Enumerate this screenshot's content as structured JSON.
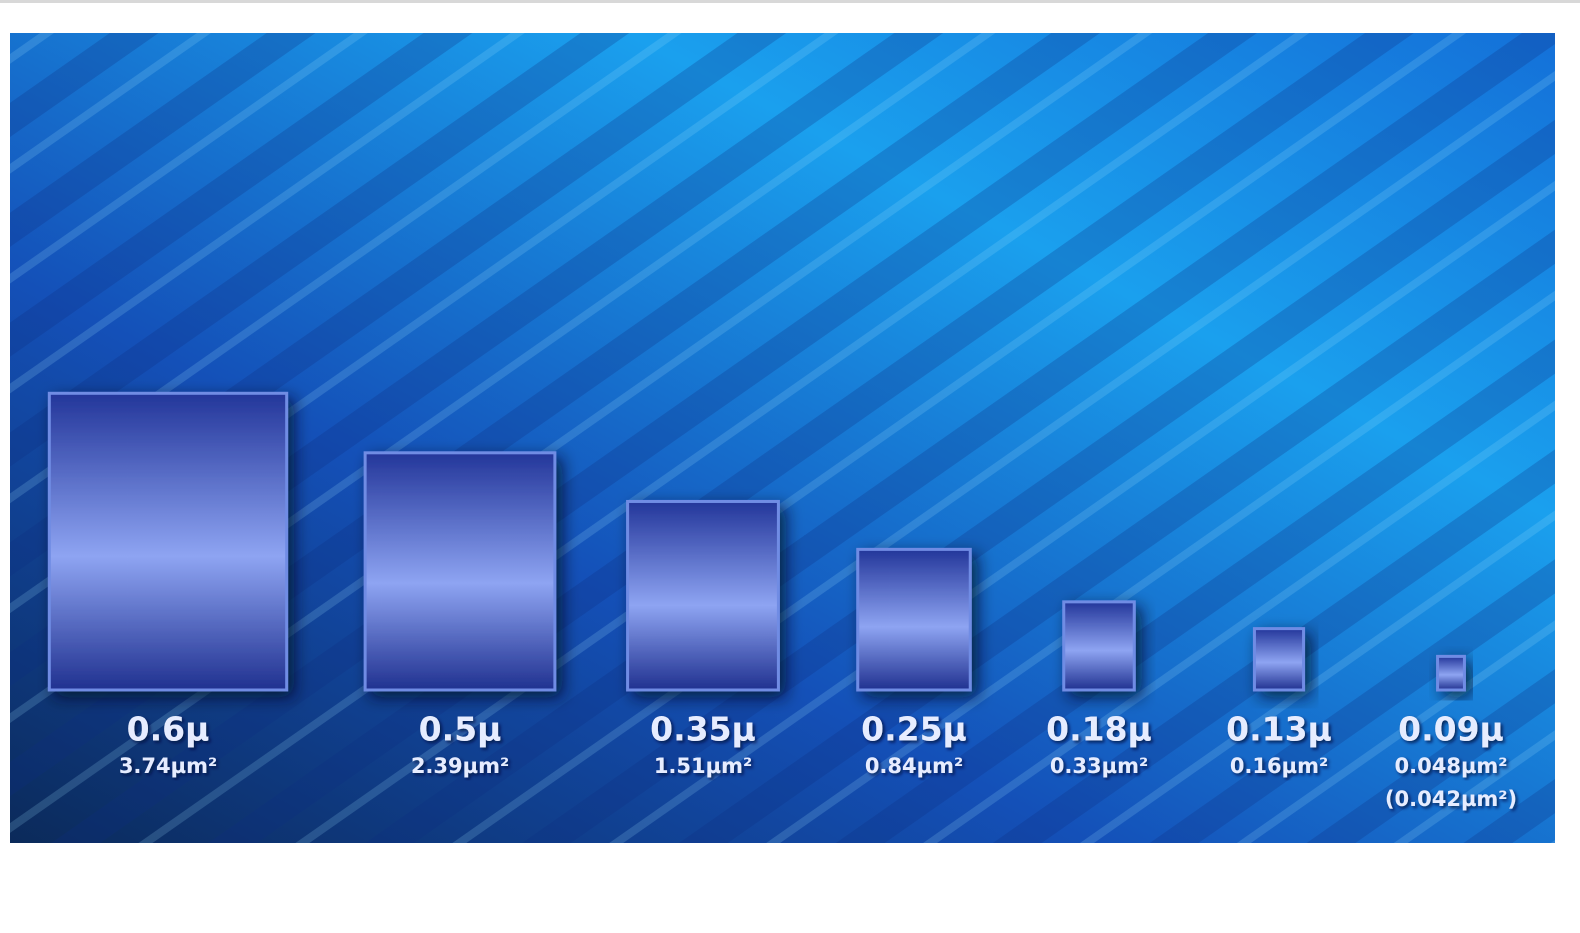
{
  "chart_data": {
    "type": "cell-area",
    "categories": [
      "0.6µ",
      "0.5µ",
      "0.35µ",
      "0.25µ",
      "0.18µ",
      "0.13µ",
      "0.09µ"
    ],
    "values": [
      3.74,
      2.39,
      1.51,
      0.84,
      0.33,
      0.16,
      0.048
    ],
    "value_labels": [
      "3.74µm²",
      "2.39µm²",
      "1.51µm²",
      "0.84µm²",
      "0.33µm²",
      "0.16µm²",
      "0.048µm²"
    ],
    "annotation": "(0.042µm²)"
  }
}
